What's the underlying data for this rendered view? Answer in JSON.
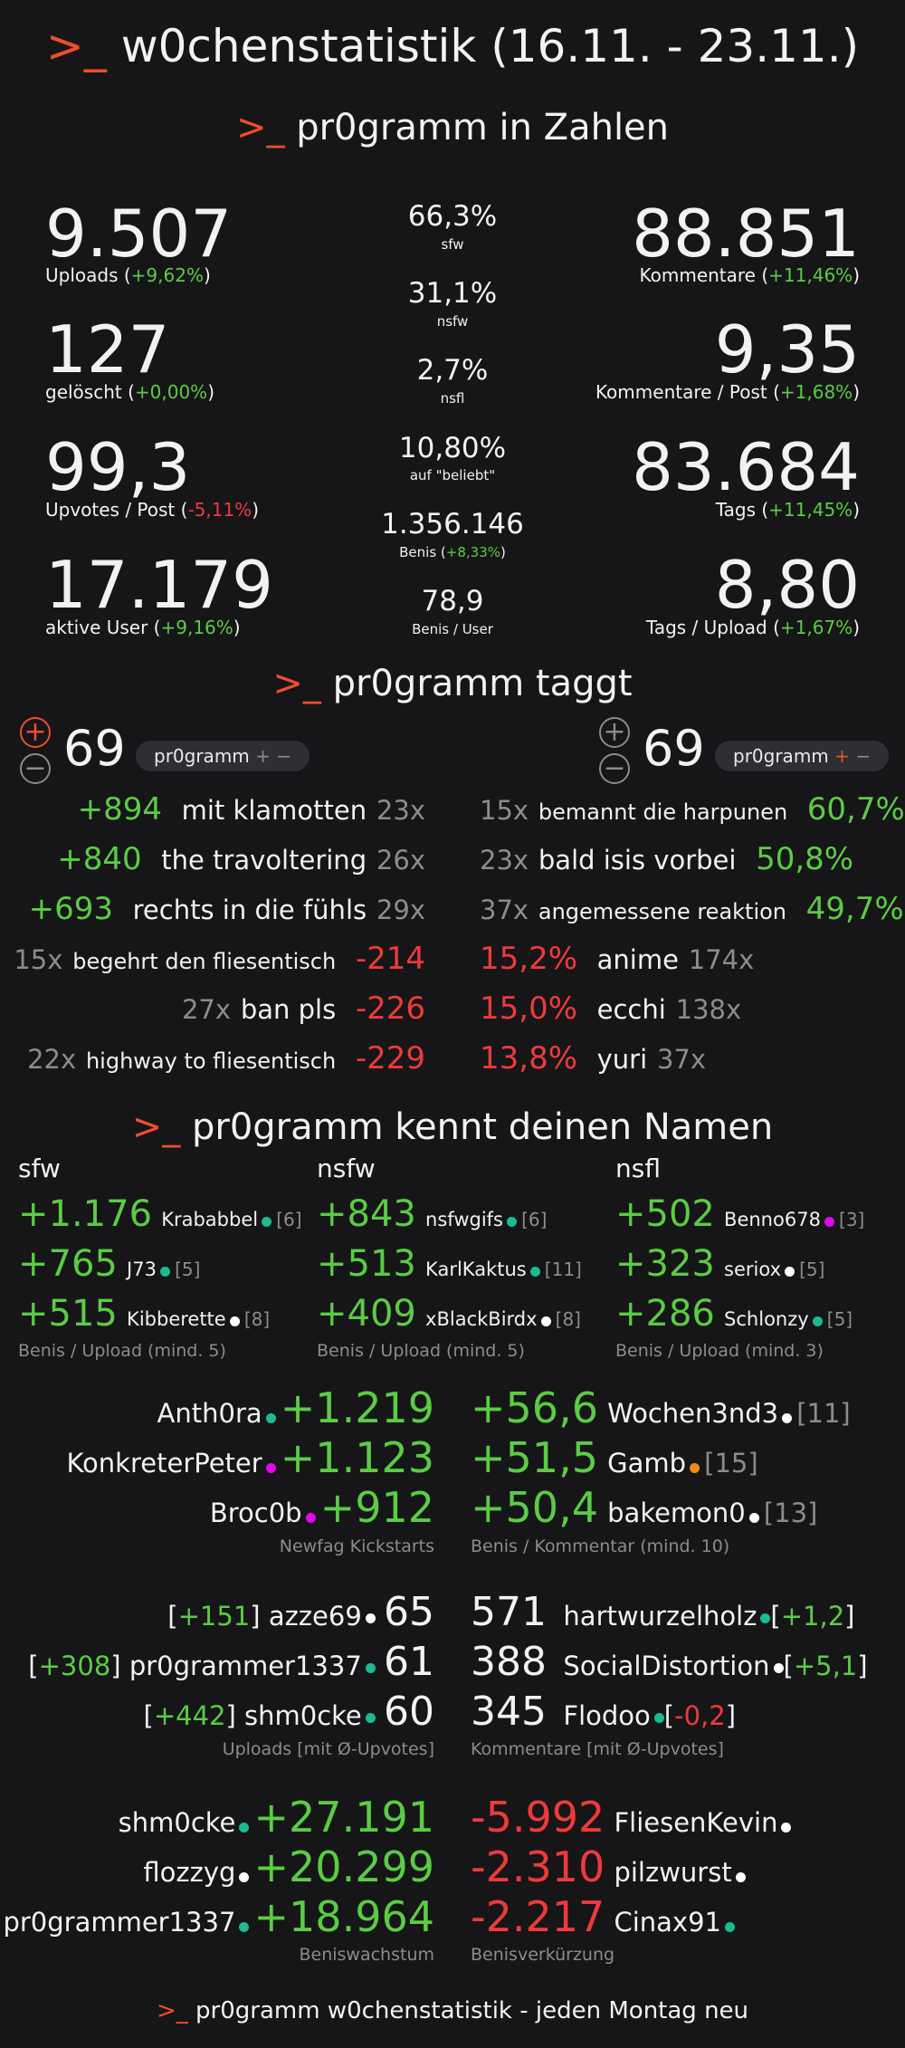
{
  "title": {
    "prompt": ">_",
    "text": "w0chenstatistik (16.11. - 23.11.)"
  },
  "sec1": {
    "prompt": ">_",
    "text": "pr0gramm in Zahlen"
  },
  "numbers": {
    "uploads": {
      "value": "9.507",
      "label": "Uploads (",
      "delta": "+9,62%",
      "close": ")"
    },
    "geloescht": {
      "value": "127",
      "label": "gelöscht (",
      "delta": "+0,00%",
      "close": ")"
    },
    "upvotes": {
      "value": "99,3",
      "label": "Upvotes / Post (",
      "delta": "-5,11%",
      "close": ")"
    },
    "aktive": {
      "value": "17.179",
      "label": "aktive User (",
      "delta": "+9,16%",
      "close": ")"
    },
    "kommentare": {
      "value": "88.851",
      "label": "Kommentare (",
      "delta": "+11,46%",
      "close": ")"
    },
    "kom_post": {
      "value": "9,35",
      "label": "Kommentare / Post (",
      "delta": "+1,68%",
      "close": ")"
    },
    "tags": {
      "value": "83.684",
      "label": "Tags (",
      "delta": "+11,45%",
      "close": ")"
    },
    "tags_upload": {
      "value": "8,80",
      "label": "Tags / Upload (",
      "delta": "+1,67%",
      "close": ")"
    },
    "center": [
      {
        "value": "66,3%",
        "label": "sfw"
      },
      {
        "value": "31,1%",
        "label": "nsfw"
      },
      {
        "value": "2,7%",
        "label": "nsfl"
      },
      {
        "value": "10,80%",
        "label": "auf \"beliebt\""
      },
      {
        "value": "1.356.146",
        "label": "Benis (",
        "delta": "+8,33%",
        "close": ")"
      },
      {
        "value": "78,9",
        "label": "Benis / User"
      }
    ]
  },
  "sec2": {
    "prompt": ">_",
    "text": "pr0gramm taggt"
  },
  "taggt": {
    "left_count": "69",
    "right_count": "69",
    "pill": "pr0gramm",
    "plus": "+",
    "minus": "−",
    "left_top": [
      {
        "score": "+894",
        "tag": "mit klamotten",
        "n": "23x"
      },
      {
        "score": "+840",
        "tag": "the travoltering",
        "n": "26x"
      },
      {
        "score": "+693",
        "tag": "rechts in die fühls",
        "n": "29x"
      }
    ],
    "left_bottom": [
      {
        "n": "15x",
        "tag": "begehrt den fliesentisch",
        "score": "-214"
      },
      {
        "n": "27x",
        "tag": "ban pls",
        "score": "-226"
      },
      {
        "n": "22x",
        "tag": "highway to fliesentisch",
        "score": "-229"
      }
    ],
    "right_top": [
      {
        "n": "15x",
        "tag": "bemannt die harpunen",
        "pct": "60,7%"
      },
      {
        "n": "23x",
        "tag": "bald isis vorbei",
        "pct": "50,8%"
      },
      {
        "n": "37x",
        "tag": "angemessene reaktion",
        "pct": "49,7%"
      }
    ],
    "right_bottom": [
      {
        "pct": "15,2%",
        "tag": "anime",
        "n": "174x"
      },
      {
        "pct": "15,0%",
        "tag": "ecchi",
        "n": "138x"
      },
      {
        "pct": "13,8%",
        "tag": "yuri",
        "n": "37x"
      }
    ]
  },
  "sec3": {
    "prompt": ">_",
    "text": "pr0gramm kennt deinen Namen"
  },
  "names": {
    "cols": [
      {
        "head": "sfw",
        "foot": "Benis / Upload (mind. 5)",
        "rows": [
          {
            "score": "+1.176",
            "user": "Krababbel",
            "cnt": "[6]",
            "dot": "#1db992"
          },
          {
            "score": "+765",
            "user": "J73",
            "cnt": "[5]",
            "dot": "#1db992"
          },
          {
            "score": "+515",
            "user": "Kibberette",
            "cnt": "[8]",
            "dot": "#ffffff"
          }
        ]
      },
      {
        "head": "nsfw",
        "foot": "Benis / Upload (mind. 5)",
        "rows": [
          {
            "score": "+843",
            "user": "nsfwgifs",
            "cnt": "[6]",
            "dot": "#1db992"
          },
          {
            "score": "+513",
            "user": "KarlKaktus",
            "cnt": "[11]",
            "dot": "#1db992"
          },
          {
            "score": "+409",
            "user": "xBlackBirdx",
            "cnt": "[8]",
            "dot": "#ffffff"
          }
        ]
      },
      {
        "head": "nsfl",
        "foot": "Benis / Upload (mind. 3)",
        "rows": [
          {
            "score": "+502",
            "user": "Benno678",
            "cnt": "[3]",
            "dot": "#e108e9"
          },
          {
            "score": "+323",
            "user": "seriox",
            "cnt": "[5]",
            "dot": "#ffffff"
          },
          {
            "score": "+286",
            "user": "Schlonzy",
            "cnt": "[5]",
            "dot": "#1db992"
          }
        ]
      }
    ],
    "newfag": {
      "foot": "Newfag Kickstarts",
      "rows": [
        {
          "user": "Anth0ra",
          "dot": "#1db992",
          "score": "+1.219"
        },
        {
          "user": "KonkreterPeter",
          "dot": "#e108e9",
          "score": "+1.123"
        },
        {
          "user": "Broc0b",
          "dot": "#e108e9",
          "score": "+912"
        }
      ]
    },
    "benis_kom": {
      "foot": "Benis / Kommentar (mind. 10)",
      "rows": [
        {
          "score": "+56,6",
          "user": "Wochen3nd3",
          "dot": "#ffffff",
          "cnt": "[11]"
        },
        {
          "score": "+51,5",
          "user": "Gamb",
          "dot": "#ee8c17",
          "cnt": "[15]"
        },
        {
          "score": "+50,4",
          "user": "bakemon0",
          "dot": "#ffffff",
          "cnt": "[13]"
        }
      ]
    },
    "uploads": {
      "foot": "Uploads [mit Ø-Upvotes]",
      "rows": [
        {
          "avg": "+151",
          "user": "azze69",
          "dot": "#ffffff",
          "n": "65"
        },
        {
          "avg": "+308",
          "user": "pr0grammer1337",
          "dot": "#1db992",
          "n": "61"
        },
        {
          "avg": "+442",
          "user": "shm0cke",
          "dot": "#1db992",
          "n": "60"
        }
      ]
    },
    "kommentare": {
      "foot": "Kommentare [mit Ø-Upvotes]",
      "rows": [
        {
          "n": "571",
          "user": "hartwurzelholz",
          "dot": "#1db992",
          "avg": "+1,2",
          "neg": false
        },
        {
          "n": "388",
          "user": "SocialDistortion",
          "dot": "#ffffff",
          "avg": "+5,1",
          "neg": false
        },
        {
          "n": "345",
          "user": "Flodoo",
          "dot": "#1db992",
          "avg": "-0,2",
          "neg": true
        }
      ]
    },
    "wachstum": {
      "foot": "Beniswachstum",
      "rows": [
        {
          "user": "shm0cke",
          "dot": "#1db992",
          "score": "+27.191"
        },
        {
          "user": "flozzyg",
          "dot": "#ffffff",
          "score": "+20.299"
        },
        {
          "user": "pr0grammer1337",
          "dot": "#1db992",
          "score": "+18.964"
        }
      ]
    },
    "verkuerzung": {
      "foot": "Benisverkürzung",
      "rows": [
        {
          "score": "-5.992",
          "user": "FliesenKevin",
          "dot": "#ffffff"
        },
        {
          "score": "-2.310",
          "user": "pilzwurst",
          "dot": "#ffffff"
        },
        {
          "score": "-2.217",
          "user": "Cinax91",
          "dot": "#1db992"
        }
      ]
    }
  },
  "footer": {
    "prompt": ">_",
    "text": "pr0gramm w0chenstatistik - jeden Montag neu"
  }
}
